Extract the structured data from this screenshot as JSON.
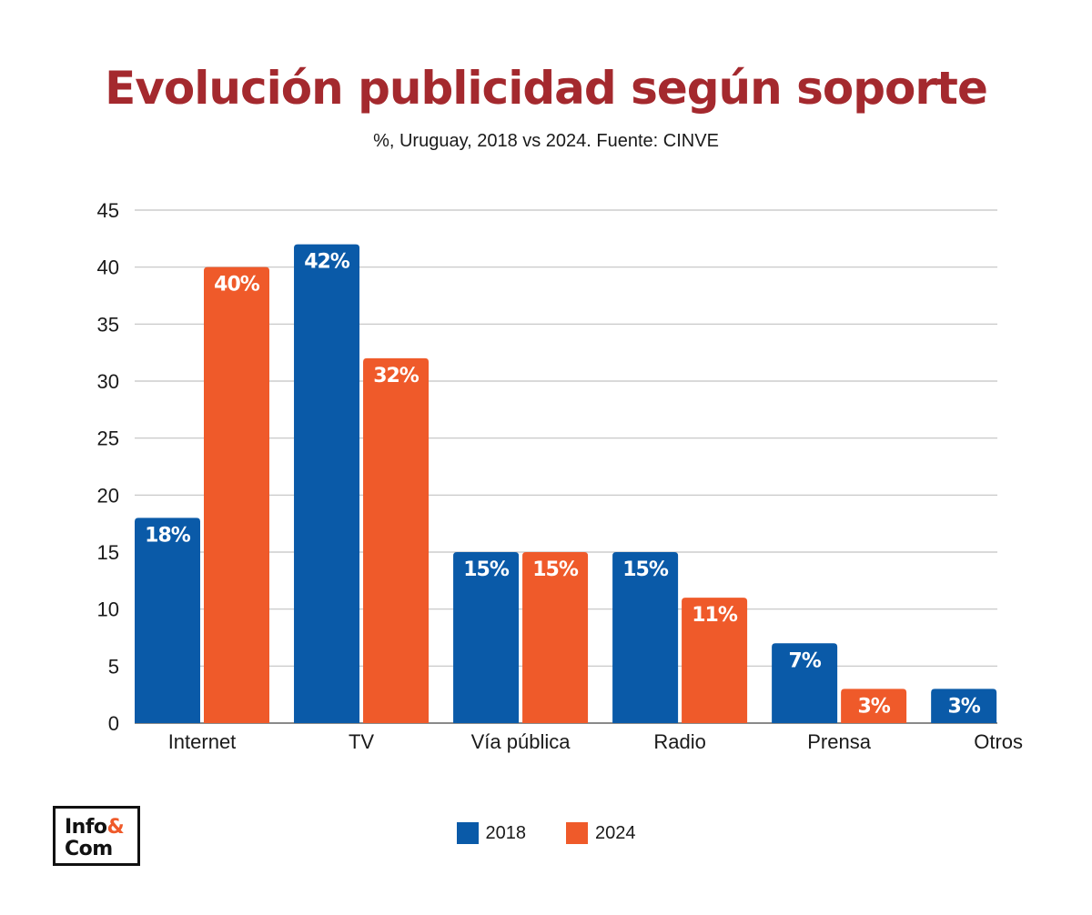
{
  "chart_data": {
    "type": "bar",
    "title": "Evolución publicidad según soporte",
    "subtitle": "%, Uruguay, 2018 vs 2024. Fuente: CINVE",
    "categories": [
      "Internet",
      "TV",
      "Vía pública",
      "Radio",
      "Prensa",
      "Otros"
    ],
    "series": [
      {
        "name": "2018",
        "color": "#0a5aa8",
        "values": [
          18,
          42,
          15,
          15,
          7,
          3
        ],
        "labels": [
          "18%",
          "42%",
          "15%",
          "15%",
          "7%",
          "3%"
        ]
      },
      {
        "name": "2024",
        "color": "#ef5a2a",
        "values": [
          40,
          32,
          15,
          11,
          3,
          null
        ],
        "labels": [
          "40%",
          "32%",
          "15%",
          "11%",
          "3%",
          null
        ]
      }
    ],
    "yticks": [
      "0",
      "5",
      "10",
      "15",
      "20",
      "25",
      "30",
      "35",
      "40",
      "45"
    ],
    "ylim": [
      0,
      45
    ],
    "grid": true,
    "legend_position": "bottom-center"
  },
  "logo": {
    "line1": "Info",
    "amp": "&",
    "line2": "Com"
  },
  "colors": {
    "title": "#a4292e",
    "accent": "#ef5a2a"
  }
}
